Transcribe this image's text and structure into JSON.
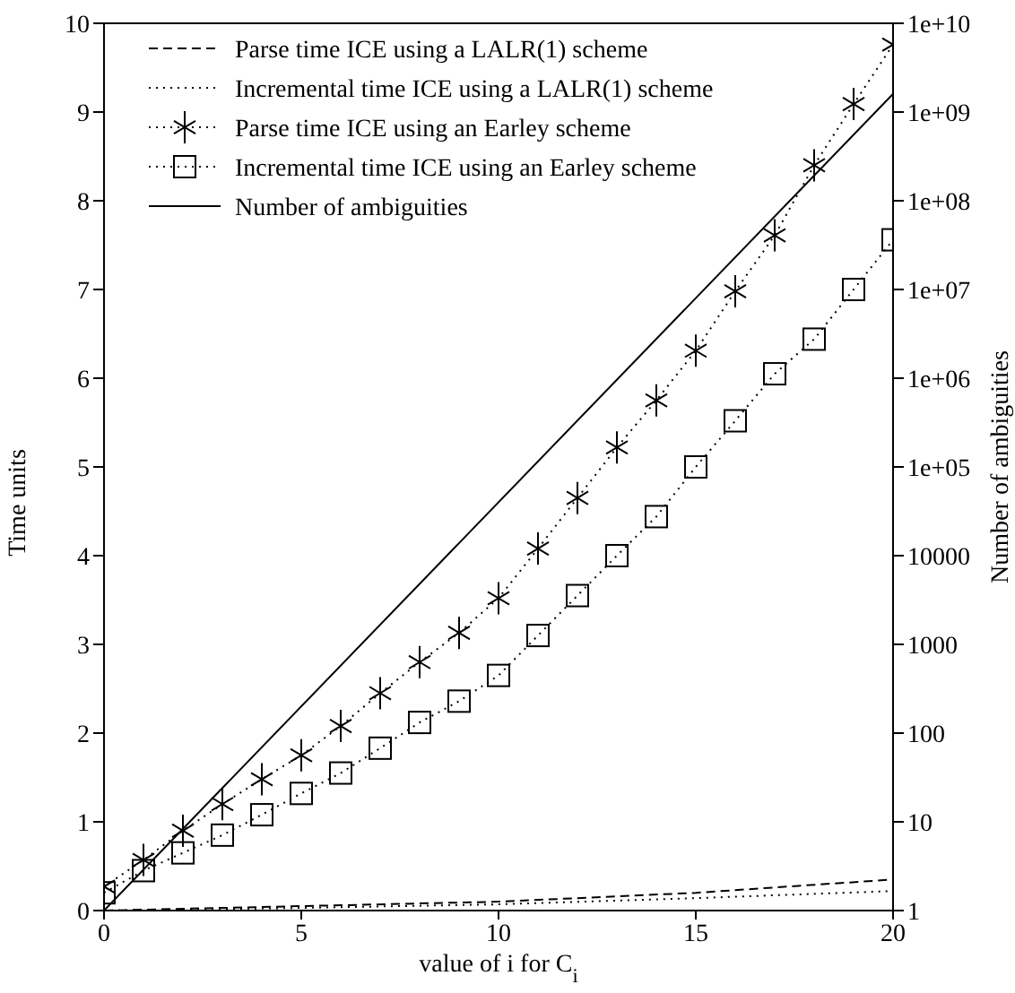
{
  "chart_data": {
    "type": "line",
    "xlabel": "value of i for C$_{i}$",
    "ylabel": "Time units",
    "y2label": "Number of ambiguities",
    "x": [
      0,
      1,
      2,
      3,
      4,
      5,
      6,
      7,
      8,
      9,
      10,
      11,
      12,
      13,
      14,
      15,
      16,
      17,
      18,
      19,
      20
    ],
    "xlim": [
      0,
      20
    ],
    "xticks": [
      0,
      5,
      10,
      15,
      20
    ],
    "ylim": [
      0,
      10
    ],
    "yticks": [
      0,
      1,
      2,
      3,
      4,
      5,
      6,
      7,
      8,
      9,
      10
    ],
    "log": "y2",
    "y2lim": [
      1,
      10000000000
    ],
    "y2ticks": [
      1,
      10,
      100,
      1000,
      10000,
      {
        "value": 100000,
        "label": "1e+05"
      },
      {
        "value": 1000000,
        "label": "1e+06"
      },
      {
        "value": 10000000,
        "label": "1e+07"
      },
      {
        "value": 100000000,
        "label": "1e+08"
      },
      {
        "value": 1000000000,
        "label": "1e+09"
      },
      {
        "value": 10000000000,
        "label": "1e+10"
      }
    ],
    "grid": false,
    "legend": "top left",
    "series": [
      {
        "name": "Parse time ICE using a LALR(1) scheme",
        "color": "#000000",
        "line_style": "dashed",
        "marker": "none",
        "x": [
          0,
          5,
          10,
          15,
          20
        ],
        "values": [
          0,
          0.05,
          0.1,
          0.2,
          0.35
        ]
      },
      {
        "name": "Incremental time ICE using a LALR(1) scheme",
        "color": "#000000",
        "line_style": "dotted",
        "marker": "none",
        "x": [
          0,
          5,
          10,
          15,
          20
        ],
        "values": [
          0,
          0.03,
          0.07,
          0.14,
          0.22
        ]
      },
      {
        "name": "Parse time ICE using an Earley scheme",
        "color": "#000000",
        "line_style": "dotted",
        "marker": "cross",
        "values": [
          0.27,
          0.57,
          0.9,
          1.2,
          1.48,
          1.75,
          2.08,
          2.45,
          2.8,
          3.13,
          3.52,
          4.08,
          4.65,
          5.22,
          5.75,
          6.31,
          6.98,
          7.61,
          8.4,
          9.09,
          9.76
        ]
      },
      {
        "name": "Incremental time ICE using an Earley scheme",
        "color": "#000000",
        "line_style": "dotted",
        "marker": "square",
        "values": [
          0.2,
          0.45,
          0.65,
          0.85,
          1.08,
          1.32,
          1.55,
          1.83,
          2.12,
          2.36,
          2.65,
          3.1,
          3.55,
          4.0,
          4.44,
          5.0,
          5.52,
          6.05,
          6.44,
          7.0,
          7.56
        ]
      },
      {
        "name": "Number of ambiguities",
        "color": "#000000",
        "line_style": "solid",
        "marker": "none",
        "axis": "y2",
        "x": [
          0,
          20
        ],
        "values": [
          1,
          1600000000
        ]
      }
    ]
  }
}
